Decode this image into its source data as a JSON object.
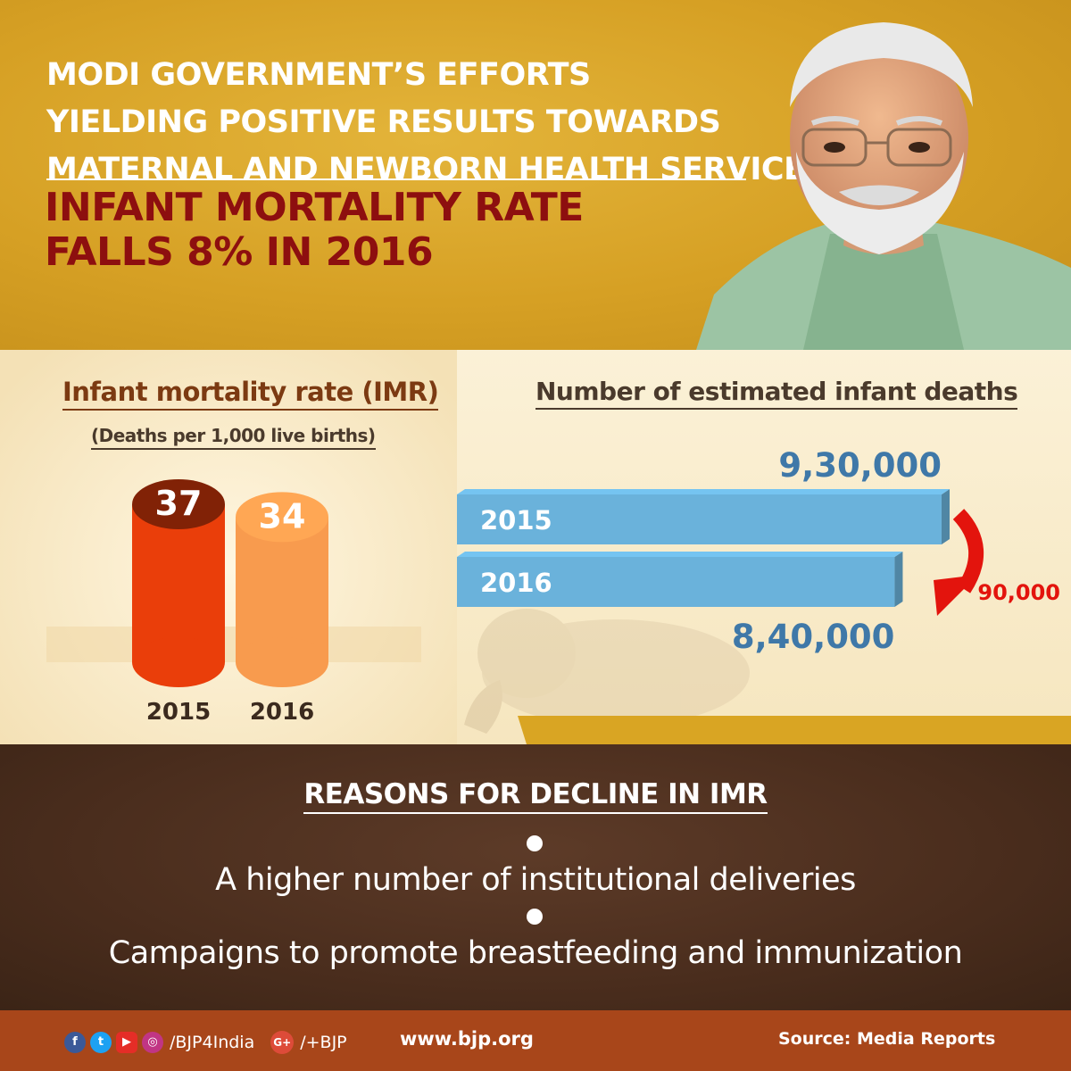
{
  "header": {
    "headline_lines": [
      "MODI GOVERNMENT’S EFFORTS",
      "YIELDING POSITIVE RESULTS TOWARDS",
      "MATERNAL AND NEWBORN HEALTH SERVICES"
    ],
    "subhead_lines": [
      "INFANT MORTALITY RATE",
      "FALLS 8% IN 2016"
    ]
  },
  "chart_data": [
    {
      "type": "bar",
      "title": "Infant mortality rate (IMR)",
      "subtitle": "(Deaths per 1,000 live births)",
      "categories": [
        "2015",
        "2016"
      ],
      "values": [
        37,
        34
      ],
      "value_labels": [
        "37",
        "34"
      ],
      "colors": [
        "#ea3e0a",
        "#f89b4e"
      ]
    },
    {
      "type": "bar",
      "orientation": "horizontal",
      "title": "Number of estimated infant deaths",
      "categories": [
        "2015",
        "2016"
      ],
      "values": [
        930000,
        840000
      ],
      "value_labels": [
        "9,30,000",
        "8,40,000"
      ],
      "difference_label": "90,000",
      "color": "#6ab2db"
    }
  ],
  "reasons": {
    "title": "REASONS FOR DECLINE IN IMR",
    "items": [
      "A higher number of institutional deliveries",
      "Campaigns to promote breastfeeding and immunization"
    ]
  },
  "footer": {
    "social_handle": "/BJP4India",
    "gplus_handle": "/+BJP",
    "website": "www.bjp.org",
    "source": "Source: Media Reports"
  },
  "colors": {
    "header_bg": "#d6a024",
    "headline_text": "#ffffff",
    "subhead_text": "#8d0f0f",
    "bottom_bg": "#4a2d1d",
    "footer_bg": "#a8461a",
    "arrow": "#e3140d"
  },
  "icons": [
    "facebook-icon",
    "twitter-icon",
    "youtube-icon",
    "instagram-icon",
    "google-plus-icon"
  ]
}
